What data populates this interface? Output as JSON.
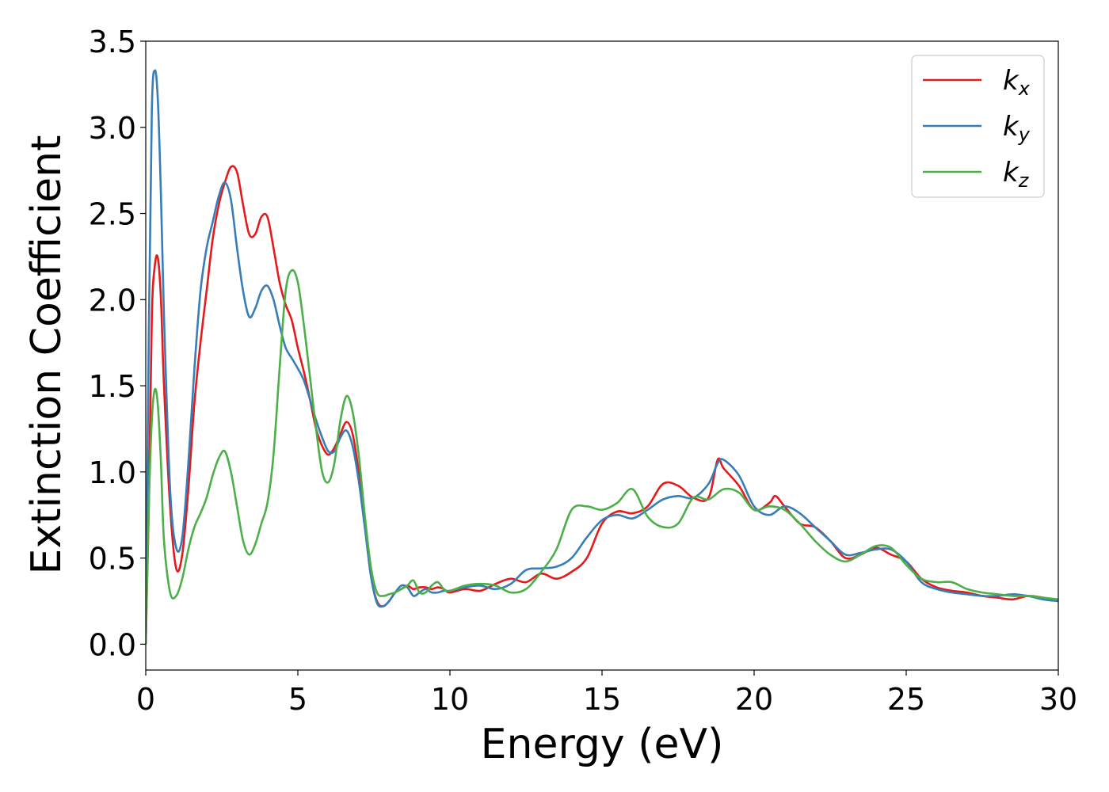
{
  "chart_data": {
    "type": "line",
    "xlabel": "Energy (eV)",
    "ylabel": "Extinction Coefficient",
    "xlim": [
      0,
      30
    ],
    "ylim": [
      -0.15,
      3.5
    ],
    "xticks": [
      "0",
      "5",
      "10",
      "15",
      "20",
      "25",
      "30"
    ],
    "yticks": [
      "0.0",
      "0.5",
      "1.0",
      "1.5",
      "2.0",
      "2.5",
      "3.0",
      "3.5"
    ],
    "grid": false,
    "legend_position": "top-right",
    "series": [
      {
        "name": "k",
        "subscript": "x",
        "color": "#e41a1c",
        "x": [
          0,
          0.1,
          0.2,
          0.3,
          0.4,
          0.5,
          0.6,
          0.8,
          1.0,
          1.2,
          1.4,
          1.6,
          1.8,
          2.0,
          2.2,
          2.4,
          2.6,
          2.8,
          3.0,
          3.2,
          3.4,
          3.6,
          3.8,
          4.0,
          4.2,
          4.4,
          4.6,
          4.8,
          5.0,
          5.2,
          5.4,
          5.6,
          5.8,
          6.0,
          6.2,
          6.4,
          6.6,
          6.8,
          7.0,
          7.2,
          7.4,
          7.6,
          7.8,
          8.0,
          8.2,
          8.4,
          8.6,
          8.8,
          9.0,
          9.2,
          9.4,
          9.6,
          9.8,
          10.0,
          10.5,
          11.0,
          11.5,
          12.0,
          12.5,
          13.0,
          13.5,
          14.0,
          14.5,
          15.0,
          15.5,
          16.0,
          16.5,
          17.0,
          17.5,
          18.0,
          18.5,
          18.8,
          19.0,
          19.5,
          20.0,
          20.5,
          20.7,
          21.0,
          21.5,
          22.0,
          22.5,
          23.0,
          23.5,
          24.0,
          24.5,
          25.0,
          25.5,
          26.0,
          26.5,
          27.0,
          27.5,
          28.0,
          28.5,
          29.0,
          29.5,
          30.0
        ],
        "values": [
          0.0,
          0.8,
          1.9,
          2.2,
          2.24,
          2.0,
          1.5,
          0.8,
          0.44,
          0.52,
          0.9,
          1.4,
          1.75,
          2.05,
          2.35,
          2.55,
          2.68,
          2.77,
          2.74,
          2.55,
          2.38,
          2.38,
          2.48,
          2.48,
          2.3,
          2.1,
          1.97,
          1.88,
          1.72,
          1.58,
          1.42,
          1.25,
          1.15,
          1.1,
          1.14,
          1.22,
          1.29,
          1.22,
          1.0,
          0.7,
          0.4,
          0.25,
          0.22,
          0.25,
          0.3,
          0.32,
          0.34,
          0.32,
          0.33,
          0.33,
          0.32,
          0.33,
          0.32,
          0.3,
          0.32,
          0.31,
          0.35,
          0.38,
          0.36,
          0.41,
          0.38,
          0.42,
          0.5,
          0.7,
          0.77,
          0.76,
          0.8,
          0.93,
          0.92,
          0.85,
          0.85,
          1.07,
          1.02,
          0.92,
          0.78,
          0.82,
          0.86,
          0.8,
          0.7,
          0.68,
          0.6,
          0.5,
          0.52,
          0.56,
          0.52,
          0.48,
          0.38,
          0.33,
          0.31,
          0.3,
          0.28,
          0.27,
          0.26,
          0.28,
          0.27,
          0.25
        ]
      },
      {
        "name": "k",
        "subscript": "y",
        "color": "#377eb8",
        "x": [
          0,
          0.1,
          0.2,
          0.3,
          0.4,
          0.5,
          0.6,
          0.8,
          1.0,
          1.2,
          1.4,
          1.6,
          1.8,
          2.0,
          2.2,
          2.4,
          2.6,
          2.8,
          3.0,
          3.2,
          3.4,
          3.6,
          3.8,
          4.0,
          4.2,
          4.4,
          4.6,
          4.8,
          5.0,
          5.2,
          5.4,
          5.6,
          5.8,
          6.0,
          6.2,
          6.4,
          6.6,
          6.8,
          7.0,
          7.2,
          7.4,
          7.6,
          7.8,
          8.0,
          8.2,
          8.4,
          8.6,
          8.8,
          9.0,
          9.2,
          9.4,
          9.6,
          9.8,
          10.0,
          10.5,
          11.0,
          11.5,
          12.0,
          12.5,
          13.0,
          13.5,
          14.0,
          14.5,
          15.0,
          15.5,
          16.0,
          16.5,
          17.0,
          17.5,
          18.0,
          18.5,
          18.8,
          19.0,
          19.5,
          20.0,
          20.5,
          21.0,
          21.5,
          22.0,
          22.5,
          23.0,
          23.5,
          24.0,
          24.5,
          25.0,
          25.5,
          26.0,
          26.5,
          27.0,
          27.5,
          28.0,
          28.5,
          29.0,
          29.5,
          30.0
        ],
        "values": [
          0.0,
          1.8,
          3.1,
          3.33,
          3.15,
          2.6,
          1.9,
          0.9,
          0.56,
          0.62,
          1.05,
          1.6,
          2.05,
          2.3,
          2.45,
          2.6,
          2.68,
          2.58,
          2.3,
          2.05,
          1.9,
          1.95,
          2.05,
          2.08,
          2.0,
          1.85,
          1.72,
          1.66,
          1.6,
          1.53,
          1.42,
          1.3,
          1.2,
          1.12,
          1.12,
          1.2,
          1.24,
          1.15,
          0.95,
          0.68,
          0.4,
          0.24,
          0.22,
          0.25,
          0.3,
          0.34,
          0.33,
          0.28,
          0.3,
          0.32,
          0.3,
          0.3,
          0.31,
          0.31,
          0.33,
          0.34,
          0.32,
          0.35,
          0.43,
          0.44,
          0.45,
          0.5,
          0.62,
          0.72,
          0.75,
          0.73,
          0.78,
          0.84,
          0.86,
          0.85,
          0.93,
          1.05,
          1.07,
          0.98,
          0.8,
          0.75,
          0.8,
          0.76,
          0.68,
          0.6,
          0.52,
          0.53,
          0.55,
          0.55,
          0.48,
          0.36,
          0.32,
          0.3,
          0.29,
          0.28,
          0.28,
          0.29,
          0.28,
          0.26,
          0.25
        ]
      },
      {
        "name": "k",
        "subscript": "z",
        "color": "#4daf4a",
        "x": [
          0,
          0.1,
          0.2,
          0.3,
          0.4,
          0.5,
          0.6,
          0.8,
          1.0,
          1.2,
          1.4,
          1.6,
          1.8,
          2.0,
          2.2,
          2.4,
          2.6,
          2.8,
          3.0,
          3.2,
          3.4,
          3.6,
          3.8,
          4.0,
          4.2,
          4.4,
          4.6,
          4.8,
          5.0,
          5.2,
          5.4,
          5.6,
          5.8,
          6.0,
          6.2,
          6.4,
          6.6,
          6.8,
          7.0,
          7.2,
          7.4,
          7.6,
          7.8,
          8.0,
          8.2,
          8.4,
          8.6,
          8.8,
          9.0,
          9.2,
          9.4,
          9.6,
          9.8,
          10.0,
          10.5,
          11.0,
          11.5,
          12.0,
          12.5,
          13.0,
          13.5,
          14.0,
          14.5,
          15.0,
          15.5,
          16.0,
          16.5,
          17.0,
          17.5,
          18.0,
          18.5,
          19.0,
          19.5,
          20.0,
          20.5,
          21.0,
          21.5,
          22.0,
          22.5,
          23.0,
          23.5,
          24.0,
          24.5,
          25.0,
          25.5,
          26.0,
          26.5,
          27.0,
          27.5,
          28.0,
          28.5,
          29.0,
          29.5,
          30.0
        ],
        "values": [
          0.0,
          0.8,
          1.3,
          1.48,
          1.38,
          1.05,
          0.6,
          0.3,
          0.28,
          0.38,
          0.55,
          0.68,
          0.76,
          0.85,
          0.98,
          1.08,
          1.12,
          1.0,
          0.8,
          0.6,
          0.52,
          0.58,
          0.7,
          0.82,
          1.1,
          1.6,
          2.05,
          2.17,
          2.1,
          1.85,
          1.55,
          1.25,
          1.0,
          0.94,
          1.05,
          1.3,
          1.44,
          1.35,
          1.1,
          0.75,
          0.45,
          0.3,
          0.28,
          0.29,
          0.3,
          0.32,
          0.34,
          0.37,
          0.3,
          0.3,
          0.34,
          0.36,
          0.32,
          0.31,
          0.34,
          0.35,
          0.34,
          0.3,
          0.32,
          0.42,
          0.55,
          0.78,
          0.8,
          0.78,
          0.82,
          0.9,
          0.74,
          0.68,
          0.7,
          0.85,
          0.84,
          0.9,
          0.88,
          0.78,
          0.8,
          0.78,
          0.7,
          0.6,
          0.52,
          0.48,
          0.52,
          0.57,
          0.56,
          0.46,
          0.38,
          0.36,
          0.36,
          0.32,
          0.3,
          0.29,
          0.28,
          0.28,
          0.27,
          0.26
        ]
      }
    ]
  }
}
